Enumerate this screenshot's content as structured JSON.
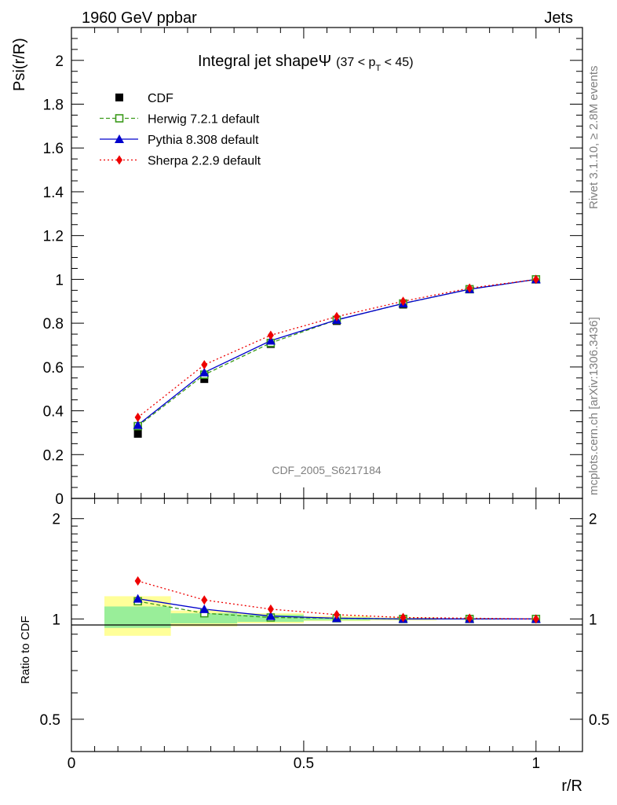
{
  "header": {
    "left": "1960 GeV ppbar",
    "right": "Jets"
  },
  "side_labels": {
    "rivet": "Rivet 3.1.10, ≥ 2.8M events",
    "mcplots": "mcplots.cern.ch [arXiv:1306.3436]"
  },
  "analysis_id": "CDF_2005_S6217184",
  "colors": {
    "cdf": "#000000",
    "herwig": "#3a9a1a",
    "pythia": "#0000cc",
    "sherpa": "#ee0000",
    "band_inner": "#99ee99",
    "band_outer": "#ffff99"
  },
  "chart_data": [
    {
      "type": "line",
      "title": "Integral jet shapeΨ",
      "title_suffix": "(37 < p",
      "title_sub": "T",
      "title_end": " < 45)",
      "xlabel": "",
      "ylabel": "Psi(r/R)",
      "xlim": [
        0,
        1.1
      ],
      "ylim": [
        0,
        2.15
      ],
      "ytick_labels": [
        "0",
        "0.2",
        "0.4",
        "0.6",
        "0.8",
        "1",
        "1.2",
        "1.4",
        "1.6",
        "1.8",
        "2"
      ],
      "legend_placement": "top-left",
      "x": [
        0.143,
        0.286,
        0.429,
        0.571,
        0.714,
        0.857,
        1.0
      ],
      "series": [
        {
          "name": "CDF",
          "values": [
            0.295,
            0.545,
            0.705,
            0.81,
            0.885,
            0.955,
            1.0
          ]
        },
        {
          "name": "Herwig 7.2.1 default",
          "values": [
            0.33,
            0.565,
            0.71,
            0.815,
            0.89,
            0.955,
            1.0
          ]
        },
        {
          "name": "Pythia 8.308 default",
          "values": [
            0.335,
            0.575,
            0.72,
            0.815,
            0.89,
            0.955,
            1.0
          ]
        },
        {
          "name": "Sherpa 2.2.9 default",
          "values": [
            0.37,
            0.61,
            0.745,
            0.83,
            0.9,
            0.96,
            1.0
          ]
        }
      ]
    },
    {
      "type": "line",
      "title": "",
      "xlabel": "r/R",
      "ylabel": "Ratio to CDF",
      "xlim": [
        0,
        1.1
      ],
      "ylim": [
        0.4,
        2.3
      ],
      "ytick_labels": [
        "0.5",
        "1",
        "2"
      ],
      "xtick_labels": [
        "0",
        "0.5",
        "1"
      ],
      "x": [
        0.143,
        0.286,
        0.429,
        0.571,
        0.714,
        0.857,
        1.0
      ],
      "bins": [
        [
          0.071,
          0.214
        ],
        [
          0.214,
          0.357
        ],
        [
          0.357,
          0.5
        ],
        [
          0.5,
          0.643
        ],
        [
          0.643,
          0.786
        ],
        [
          0.786,
          0.929
        ],
        [
          0.929,
          1.071
        ]
      ],
      "band_inner": [
        [
          0.94,
          1.09
        ],
        [
          0.97,
          1.04
        ],
        [
          0.98,
          1.03
        ],
        [
          0.99,
          1.01
        ],
        [
          0.995,
          1.005
        ],
        [
          0.998,
          1.002
        ],
        [
          1.0,
          1.0
        ]
      ],
      "band_outer": [
        [
          0.89,
          1.17
        ],
        [
          0.95,
          1.06
        ],
        [
          0.97,
          1.04
        ],
        [
          0.985,
          1.02
        ],
        [
          0.99,
          1.01
        ],
        [
          0.995,
          1.005
        ],
        [
          1.0,
          1.0
        ]
      ],
      "series": [
        {
          "name": "Herwig 7.2.1 default",
          "values": [
            1.13,
            1.04,
            1.01,
            1.005,
            1.0,
            1.0,
            1.0
          ]
        },
        {
          "name": "Pythia 8.308 default",
          "values": [
            1.15,
            1.07,
            1.02,
            1.005,
            1.0,
            1.0,
            1.0
          ]
        },
        {
          "name": "Sherpa 2.2.9 default",
          "values": [
            1.3,
            1.14,
            1.07,
            1.03,
            1.01,
            1.005,
            1.0
          ]
        }
      ]
    }
  ]
}
